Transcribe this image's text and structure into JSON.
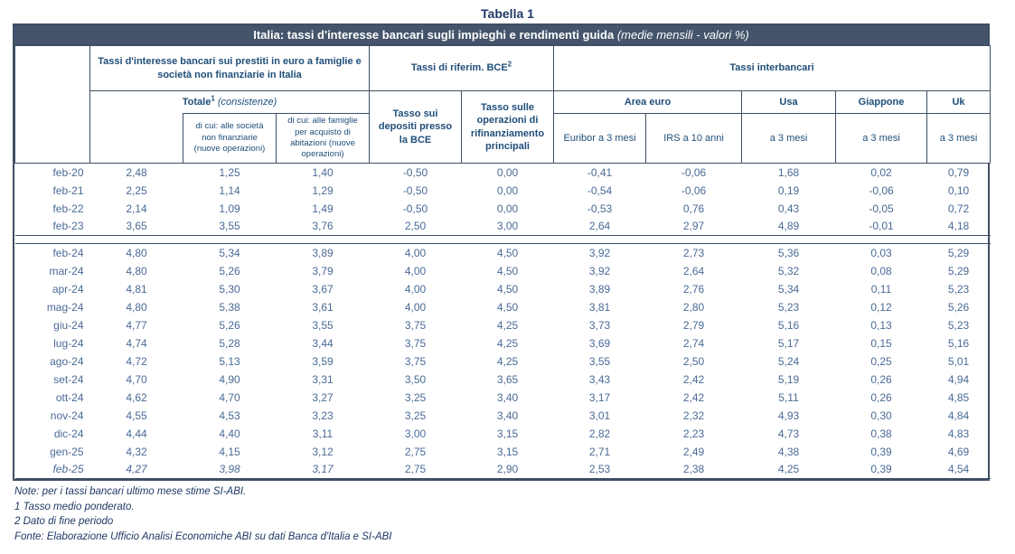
{
  "page": {
    "title": "Tabella 1"
  },
  "table": {
    "caption_bold": "Italia: tassi d'interesse bancari sugli impieghi e rendimenti guida",
    "caption_italic": "(medie mensili - valori %)",
    "header": {
      "group_loans": "Tassi d'interesse bancari sui prestiti in euro a famiglie e società non finanziarie in Italia",
      "totale": "Totale",
      "totale_sup": "1",
      "totale_note": " (consistenze)",
      "col_societa": "di cui: alle società non finanziarie (nuove operazioni)",
      "col_famiglie": "di cui: alle famiglie per acquisto di abitazioni (nuove operazioni)",
      "group_bce": "Tassi di riferim. BCE",
      "bce_sup": "2",
      "col_depositi": "Tasso sui depositi presso la BCE",
      "col_rifinanziamento": "Tasso sulle operazioni di rifinanziamento principali",
      "group_interbank": "Tassi interbancari",
      "sub_area_euro": "Area euro",
      "sub_usa": "Usa",
      "sub_giappone": "Giappone",
      "sub_uk": "Uk",
      "col_euribor": "Euribor a 3 mesi",
      "col_irs": "IRS a 10 anni",
      "col_usa_3m": "a 3 mesi",
      "col_giappone_3m": "a 3 mesi",
      "col_uk_3m": "a 3 mesi"
    },
    "sections": [
      {
        "name": "annual",
        "rows": [
          {
            "label": "feb-20",
            "values": [
              "2,48",
              "1,25",
              "1,40",
              "-0,50",
              "0,00",
              "-0,41",
              "-0,06",
              "1,68",
              "0,02",
              "0,79"
            ]
          },
          {
            "label": "feb-21",
            "values": [
              "2,25",
              "1,14",
              "1,29",
              "-0,50",
              "0,00",
              "-0,54",
              "-0,06",
              "0,19",
              "-0,06",
              "0,10"
            ]
          },
          {
            "label": "feb-22",
            "values": [
              "2,14",
              "1,09",
              "1,49",
              "-0,50",
              "0,00",
              "-0,53",
              "0,76",
              "0,43",
              "-0,05",
              "0,72"
            ]
          },
          {
            "label": "feb-23",
            "values": [
              "3,65",
              "3,55",
              "3,76",
              "2,50",
              "3,00",
              "2,64",
              "2,97",
              "4,89",
              "-0,01",
              "4,18"
            ]
          }
        ]
      },
      {
        "name": "monthly",
        "rows": [
          {
            "label": "feb-24",
            "values": [
              "4,80",
              "5,34",
              "3,89",
              "4,00",
              "4,50",
              "3,92",
              "2,73",
              "5,36",
              "0,03",
              "5,29"
            ]
          },
          {
            "label": "mar-24",
            "values": [
              "4,80",
              "5,26",
              "3,79",
              "4,00",
              "4,50",
              "3,92",
              "2,64",
              "5,32",
              "0,08",
              "5,29"
            ]
          },
          {
            "label": "apr-24",
            "values": [
              "4,81",
              "5,30",
              "3,67",
              "4,00",
              "4,50",
              "3,89",
              "2,76",
              "5,34",
              "0,11",
              "5,23"
            ]
          },
          {
            "label": "mag-24",
            "values": [
              "4,80",
              "5,38",
              "3,61",
              "4,00",
              "4,50",
              "3,81",
              "2,80",
              "5,23",
              "0,12",
              "5,26"
            ]
          },
          {
            "label": "giu-24",
            "values": [
              "4,77",
              "5,26",
              "3,55",
              "3,75",
              "4,25",
              "3,73",
              "2,79",
              "5,16",
              "0,13",
              "5,23"
            ]
          },
          {
            "label": "lug-24",
            "values": [
              "4,74",
              "5,28",
              "3,44",
              "3,75",
              "4,25",
              "3,69",
              "2,74",
              "5,17",
              "0,15",
              "5,16"
            ]
          },
          {
            "label": "ago-24",
            "values": [
              "4,72",
              "5,13",
              "3,59",
              "3,75",
              "4,25",
              "3,55",
              "2,50",
              "5,24",
              "0,25",
              "5,01"
            ]
          },
          {
            "label": "set-24",
            "values": [
              "4,70",
              "4,90",
              "3,31",
              "3,50",
              "3,65",
              "3,43",
              "2,42",
              "5,19",
              "0,26",
              "4,94"
            ]
          },
          {
            "label": "ott-24",
            "values": [
              "4,62",
              "4,70",
              "3,27",
              "3,25",
              "3,40",
              "3,17",
              "2,42",
              "5,11",
              "0,26",
              "4,85"
            ]
          },
          {
            "label": "nov-24",
            "values": [
              "4,55",
              "4,53",
              "3,23",
              "3,25",
              "3,40",
              "3,01",
              "2,32",
              "4,93",
              "0,30",
              "4,84"
            ]
          },
          {
            "label": "dic-24",
            "values": [
              "4,44",
              "4,40",
              "3,11",
              "3,00",
              "3,15",
              "2,82",
              "2,23",
              "4,73",
              "0,38",
              "4,83"
            ]
          },
          {
            "label": "gen-25",
            "values": [
              "4,32",
              "4,15",
              "3,12",
              "2,75",
              "3,15",
              "2,71",
              "2,49",
              "4,38",
              "0,39",
              "4,69"
            ]
          },
          {
            "label": "feb-25",
            "values": [
              "4,27",
              "3,98",
              "3,17",
              "2,75",
              "2,90",
              "2,53",
              "2,38",
              "4,25",
              "0,39",
              "4,54"
            ],
            "italic_label": true,
            "estimate_italic_cols": 3
          }
        ]
      }
    ]
  },
  "notes": {
    "line1": "Note: per i tassi bancari ultimo mese stime SI-ABI.",
    "line2": "1 Tasso medio ponderato.",
    "line3": "2 Dato di fine periodo",
    "line4": "Fonte: Elaborazione Ufficio Analisi Economiche ABI su dati Banca d'Italia e SI-ABI"
  },
  "colors": {
    "caption_background": "#44546A",
    "border": "#3f4e64",
    "header_text": "#1f4e79",
    "data_text": "#4a6a96",
    "title_text": "#1f3864"
  }
}
